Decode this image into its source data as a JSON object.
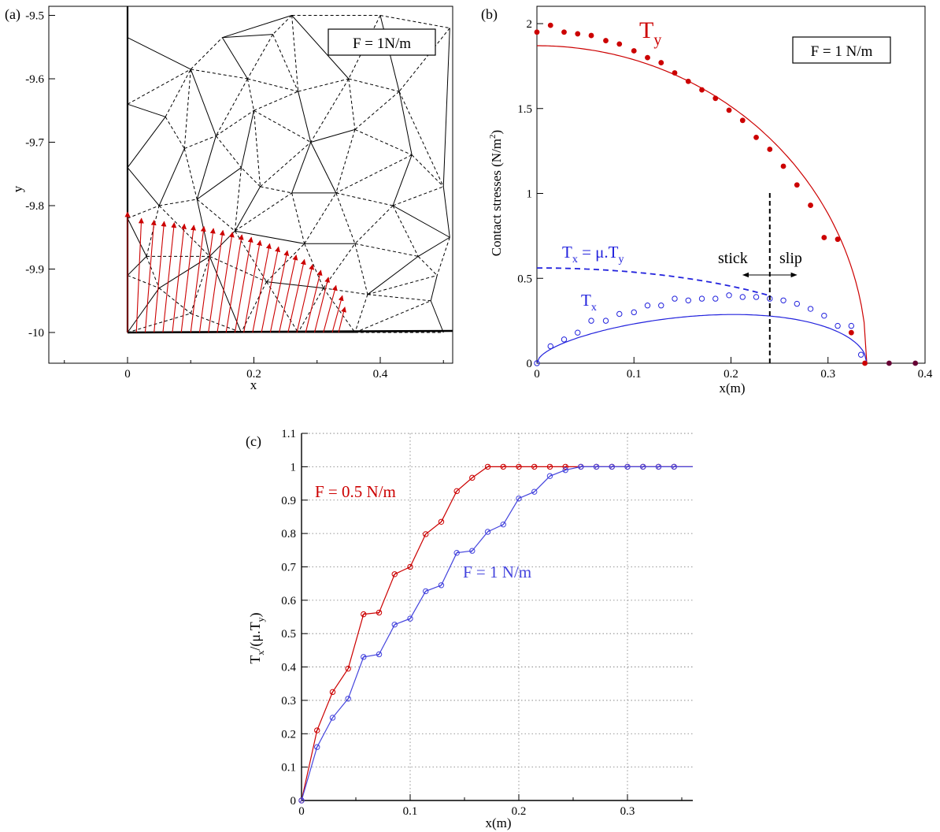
{
  "chart_data": [
    {
      "panel_label": "(a)",
      "type": "scatter",
      "title": "",
      "xlabel": "x",
      "ylabel": "y",
      "xlim": [
        -0.1,
        0.51
      ],
      "ylim": [
        -10.045,
        -9.48
      ],
      "x_ticks": [
        "0",
        "0.2",
        "0.4"
      ],
      "x_tick_values": [
        0,
        0.2,
        0.4
      ],
      "y_ticks": [
        "-9.5",
        "-9.6",
        "-9.7",
        "-9.8",
        "-9.9",
        "-10"
      ],
      "y_tick_values": [
        -9.5,
        -9.6,
        -9.7,
        -9.8,
        -9.9,
        -10
      ],
      "annotation": "F = 1N/m",
      "colors": {
        "mesh": "#000000",
        "vectors": "#cc0000"
      },
      "vectors": {
        "name": "contact traction vectors",
        "base_y": -10.0,
        "x": [
          0,
          0.014,
          0.028,
          0.042,
          0.056,
          0.071,
          0.085,
          0.1,
          0.114,
          0.128,
          0.142,
          0.156,
          0.17,
          0.184,
          0.198,
          0.212,
          0.226,
          0.24,
          0.254,
          0.268,
          0.282,
          0.296,
          0.31,
          0.324,
          0.334
        ],
        "tip_dx": [
          0,
          0.008,
          0.014,
          0.016,
          0.018,
          0.019,
          0.02,
          0.021,
          0.022,
          0.023,
          0.024,
          0.025,
          0.026,
          0.026,
          0.027,
          0.027,
          0.027,
          0.027,
          0.026,
          0.025,
          0.024,
          0.022,
          0.02,
          0.016,
          0.01
        ],
        "tip_y": [
          -9.81,
          -9.82,
          -9.823,
          -9.825,
          -9.827,
          -9.829,
          -9.831,
          -9.833,
          -9.836,
          -9.839,
          -9.842,
          -9.846,
          -9.85,
          -9.855,
          -9.86,
          -9.865,
          -9.871,
          -9.878,
          -9.885,
          -9.893,
          -9.902,
          -9.913,
          -9.926,
          -9.942,
          -9.96
        ]
      },
      "mesh_nodes": [
        [
          0.0,
          -9.535
        ],
        [
          0.0,
          -9.64
        ],
        [
          0.0,
          -9.74
        ],
        [
          0.0,
          -9.82
        ],
        [
          0.0,
          -9.91
        ],
        [
          0.0,
          -10.0
        ],
        [
          0.1,
          -9.585
        ],
        [
          0.09,
          -9.71
        ],
        [
          0.05,
          -9.8
        ],
        [
          0.05,
          -9.93
        ],
        [
          0.1,
          -9.97
        ],
        [
          0.15,
          -9.535
        ],
        [
          0.19,
          -9.6
        ],
        [
          0.14,
          -9.69
        ],
        [
          0.11,
          -9.79
        ],
        [
          0.13,
          -9.88
        ],
        [
          0.2,
          -9.65
        ],
        [
          0.21,
          -9.77
        ],
        [
          0.18,
          -9.74
        ],
        [
          0.17,
          -9.84
        ],
        [
          0.22,
          -9.92
        ],
        [
          0.18,
          -10.0
        ],
        [
          0.27,
          -9.62
        ],
        [
          0.29,
          -9.7
        ],
        [
          0.26,
          -9.78
        ],
        [
          0.28,
          -9.86
        ],
        [
          0.31,
          -9.93
        ],
        [
          0.27,
          -10.0
        ],
        [
          0.26,
          -9.5
        ],
        [
          0.35,
          -9.6
        ],
        [
          0.36,
          -9.68
        ],
        [
          0.33,
          -9.78
        ],
        [
          0.36,
          -9.86
        ],
        [
          0.38,
          -9.94
        ],
        [
          0.36,
          -10.0
        ],
        [
          0.4,
          -9.5
        ],
        [
          0.43,
          -9.62
        ],
        [
          0.45,
          -9.72
        ],
        [
          0.42,
          -9.8
        ],
        [
          0.46,
          -9.88
        ],
        [
          0.48,
          -9.95
        ],
        [
          0.5,
          -10.0
        ],
        [
          0.51,
          -9.52
        ],
        [
          0.5,
          -9.77
        ],
        [
          0.51,
          -9.85
        ],
        [
          0.49,
          -9.91
        ],
        [
          0.23,
          -9.53
        ],
        [
          0.06,
          -9.66
        ],
        [
          0.03,
          -9.88
        ]
      ],
      "mesh_edges": [
        [
          0,
          6
        ],
        [
          0,
          1
        ],
        [
          1,
          6
        ],
        [
          1,
          47
        ],
        [
          47,
          6
        ],
        [
          1,
          2
        ],
        [
          2,
          47
        ],
        [
          47,
          7
        ],
        [
          6,
          7
        ],
        [
          2,
          8
        ],
        [
          2,
          3
        ],
        [
          3,
          8
        ],
        [
          8,
          7
        ],
        [
          7,
          14
        ],
        [
          8,
          14
        ],
        [
          3,
          48
        ],
        [
          48,
          8
        ],
        [
          3,
          4
        ],
        [
          4,
          48
        ],
        [
          4,
          9
        ],
        [
          48,
          9
        ],
        [
          9,
          5
        ],
        [
          5,
          10
        ],
        [
          9,
          10
        ],
        [
          9,
          15
        ],
        [
          48,
          15
        ],
        [
          8,
          15
        ],
        [
          14,
          15
        ],
        [
          10,
          15
        ],
        [
          10,
          21
        ],
        [
          15,
          21
        ],
        [
          15,
          20
        ],
        [
          20,
          21
        ],
        [
          15,
          19
        ],
        [
          19,
          20
        ],
        [
          14,
          19
        ],
        [
          14,
          18
        ],
        [
          18,
          19
        ],
        [
          7,
          13
        ],
        [
          13,
          14
        ],
        [
          13,
          18
        ],
        [
          6,
          11
        ],
        [
          11,
          12
        ],
        [
          6,
          12
        ],
        [
          12,
          13
        ],
        [
          6,
          13
        ],
        [
          12,
          16
        ],
        [
          13,
          16
        ],
        [
          16,
          18
        ],
        [
          16,
          17
        ],
        [
          17,
          18
        ],
        [
          17,
          19
        ],
        [
          17,
          24
        ],
        [
          19,
          24
        ],
        [
          19,
          25
        ],
        [
          24,
          25
        ],
        [
          20,
          25
        ],
        [
          20,
          26
        ],
        [
          25,
          26
        ],
        [
          20,
          27
        ],
        [
          21,
          27
        ],
        [
          26,
          27
        ],
        [
          26,
          34
        ],
        [
          27,
          34
        ],
        [
          26,
          33
        ],
        [
          33,
          34
        ],
        [
          25,
          32
        ],
        [
          26,
          32
        ],
        [
          32,
          33
        ],
        [
          24,
          31
        ],
        [
          25,
          31
        ],
        [
          31,
          32
        ],
        [
          23,
          24
        ],
        [
          17,
          23
        ],
        [
          16,
          22
        ],
        [
          22,
          23
        ],
        [
          16,
          23
        ],
        [
          12,
          22
        ],
        [
          11,
          46
        ],
        [
          46,
          22
        ],
        [
          46,
          12
        ],
        [
          11,
          28
        ],
        [
          28,
          46
        ],
        [
          28,
          22
        ],
        [
          28,
          29
        ],
        [
          22,
          29
        ],
        [
          29,
          23
        ],
        [
          23,
          30
        ],
        [
          29,
          30
        ],
        [
          30,
          31
        ],
        [
          23,
          31
        ],
        [
          28,
          35
        ],
        [
          35,
          29
        ],
        [
          35,
          36
        ],
        [
          29,
          36
        ],
        [
          36,
          30
        ],
        [
          36,
          37
        ],
        [
          30,
          37
        ],
        [
          37,
          31
        ],
        [
          37,
          38
        ],
        [
          31,
          38
        ],
        [
          38,
          32
        ],
        [
          38,
          44
        ],
        [
          38,
          43
        ],
        [
          37,
          43
        ],
        [
          43,
          44
        ],
        [
          32,
          39
        ],
        [
          38,
          39
        ],
        [
          39,
          44
        ],
        [
          39,
          45
        ],
        [
          44,
          45
        ],
        [
          33,
          39
        ],
        [
          33,
          45
        ],
        [
          33,
          40
        ],
        [
          40,
          45
        ],
        [
          34,
          40
        ],
        [
          34,
          41
        ],
        [
          40,
          41
        ],
        [
          35,
          42
        ],
        [
          42,
          36
        ],
        [
          42,
          43
        ],
        [
          36,
          43
        ]
      ]
    },
    {
      "panel_label": "(b)",
      "type": "line",
      "title": "",
      "xlabel": "x(m)",
      "ylabel": "Contact stresses (N/m²)",
      "xlim": [
        0,
        0.4
      ],
      "ylim": [
        0,
        2.1
      ],
      "x_ticks": [
        "0",
        "0.1",
        "0.2",
        "0.3",
        "0.4"
      ],
      "x_tick_values": [
        0,
        0.1,
        0.2,
        0.3,
        0.4
      ],
      "y_ticks": [
        "0",
        "0.5",
        "1",
        "1.5",
        "2"
      ],
      "y_tick_values": [
        0,
        0.5,
        1,
        1.5,
        2
      ],
      "annotation": "F = 1 N/m",
      "stick_slip": {
        "x": 0.24,
        "y_range": [
          0,
          1.01
        ],
        "arrow_y": 0.52,
        "stick_label": "stick",
        "slip_label": "slip"
      },
      "series": [
        {
          "name": "Ty",
          "name_main": "T",
          "name_sub": "y",
          "kind": "analytical",
          "color": "#cc0000",
          "peak": 1.87,
          "a": 0.34
        },
        {
          "name": "Ty",
          "kind": "numerical",
          "color": "#cc0000",
          "marker": "filled-circle",
          "x": [
            0,
            0.014,
            0.028,
            0.042,
            0.056,
            0.071,
            0.085,
            0.1,
            0.114,
            0.128,
            0.142,
            0.156,
            0.17,
            0.184,
            0.198,
            0.212,
            0.226,
            0.24,
            0.254,
            0.268,
            0.282,
            0.296,
            0.31,
            0.324,
            0.338,
            0.363,
            0.39
          ],
          "y": [
            1.95,
            1.99,
            1.95,
            1.94,
            1.93,
            1.9,
            1.88,
            1.84,
            1.8,
            1.77,
            1.71,
            1.66,
            1.61,
            1.56,
            1.49,
            1.43,
            1.33,
            1.26,
            1.16,
            1.05,
            0.93,
            0.74,
            0.73,
            0.18,
            0,
            0,
            0
          ]
        },
        {
          "name": "Tx = μ.Ty",
          "label_parts": [
            "T",
            "x",
            " = μ.T",
            "y"
          ],
          "kind": "analytical",
          "color": "#2222dd",
          "dashed": true,
          "mu": 0.3,
          "peak": 1.87,
          "a": 0.34,
          "x_end": 0.24
        },
        {
          "name": "Tx",
          "name_main": "T",
          "name_sub": "x",
          "kind": "analytical",
          "color": "#2222dd",
          "a": 0.34,
          "c": 0.24,
          "mu": 0.3,
          "peak": 1.87
        },
        {
          "name": "Tx",
          "kind": "numerical",
          "color": "#2222dd",
          "marker": "open-circle",
          "x": [
            0,
            0.014,
            0.028,
            0.042,
            0.056,
            0.071,
            0.085,
            0.1,
            0.114,
            0.128,
            0.142,
            0.156,
            0.17,
            0.184,
            0.198,
            0.212,
            0.226,
            0.24,
            0.254,
            0.268,
            0.282,
            0.296,
            0.31,
            0.324,
            0.334
          ],
          "y": [
            0,
            0.1,
            0.14,
            0.18,
            0.25,
            0.25,
            0.29,
            0.3,
            0.34,
            0.34,
            0.38,
            0.37,
            0.38,
            0.38,
            0.4,
            0.39,
            0.39,
            0.38,
            0.37,
            0.35,
            0.32,
            0.28,
            0.22,
            0.22,
            0.05
          ]
        }
      ]
    },
    {
      "panel_label": "(c)",
      "type": "line",
      "title": "",
      "xlabel": "x(m)",
      "ylabel": "Tx/(μ.Ty)",
      "ylabel_parts": [
        "T",
        "x",
        "/(μ.T",
        "y",
        ")"
      ],
      "xlim": [
        0,
        0.36
      ],
      "ylim": [
        0,
        1.1
      ],
      "grid": true,
      "x_ticks": [
        "0",
        "0.1",
        "0.2",
        "0.3"
      ],
      "x_tick_values": [
        0,
        0.1,
        0.2,
        0.3
      ],
      "y_ticks": [
        "0",
        "0.1",
        "0.2",
        "0.3",
        "0.4",
        "0.5",
        "0.6",
        "0.7",
        "0.8",
        "0.9",
        "1",
        "1.1"
      ],
      "y_tick_values": [
        0,
        0.1,
        0.2,
        0.3,
        0.4,
        0.5,
        0.6,
        0.7,
        0.8,
        0.9,
        1.0,
        1.1
      ],
      "series": [
        {
          "name": "F = 0.5 N/m",
          "color": "#cc0000",
          "x": [
            0,
            0.0143,
            0.0286,
            0.0429,
            0.0571,
            0.0714,
            0.0857,
            0.1,
            0.1143,
            0.1286,
            0.1429,
            0.1571,
            0.1714,
            0.1857,
            0.2,
            0.2143,
            0.2286,
            0.2429,
            0.2571,
            0.2714,
            0.2857,
            0.3,
            0.3143,
            0.3286,
            0.3429
          ],
          "y": [
            0,
            0.21,
            0.325,
            0.395,
            0.558,
            0.563,
            0.678,
            0.7,
            0.798,
            0.835,
            0.927,
            0.967,
            1.0,
            1.0,
            1.0,
            1.0,
            1.0,
            1.0,
            1.0,
            1.0,
            1.0,
            1.0,
            1.0,
            1.0,
            1.0
          ]
        },
        {
          "name": "F = 1 N/m",
          "color": "#4444dd",
          "x": [
            0,
            0.0143,
            0.0286,
            0.0429,
            0.0571,
            0.0714,
            0.0857,
            0.1,
            0.1143,
            0.1286,
            0.1429,
            0.1571,
            0.1714,
            0.1857,
            0.2,
            0.2143,
            0.2286,
            0.2429,
            0.2571,
            0.2714,
            0.2857,
            0.3,
            0.3143,
            0.3286,
            0.3429
          ],
          "y": [
            0,
            0.16,
            0.248,
            0.305,
            0.43,
            0.438,
            0.527,
            0.545,
            0.627,
            0.645,
            0.742,
            0.748,
            0.805,
            0.827,
            0.905,
            0.925,
            0.972,
            0.99,
            1.0,
            1.0,
            1.0,
            1.0,
            1.0,
            1.0,
            1.0
          ]
        }
      ]
    }
  ]
}
